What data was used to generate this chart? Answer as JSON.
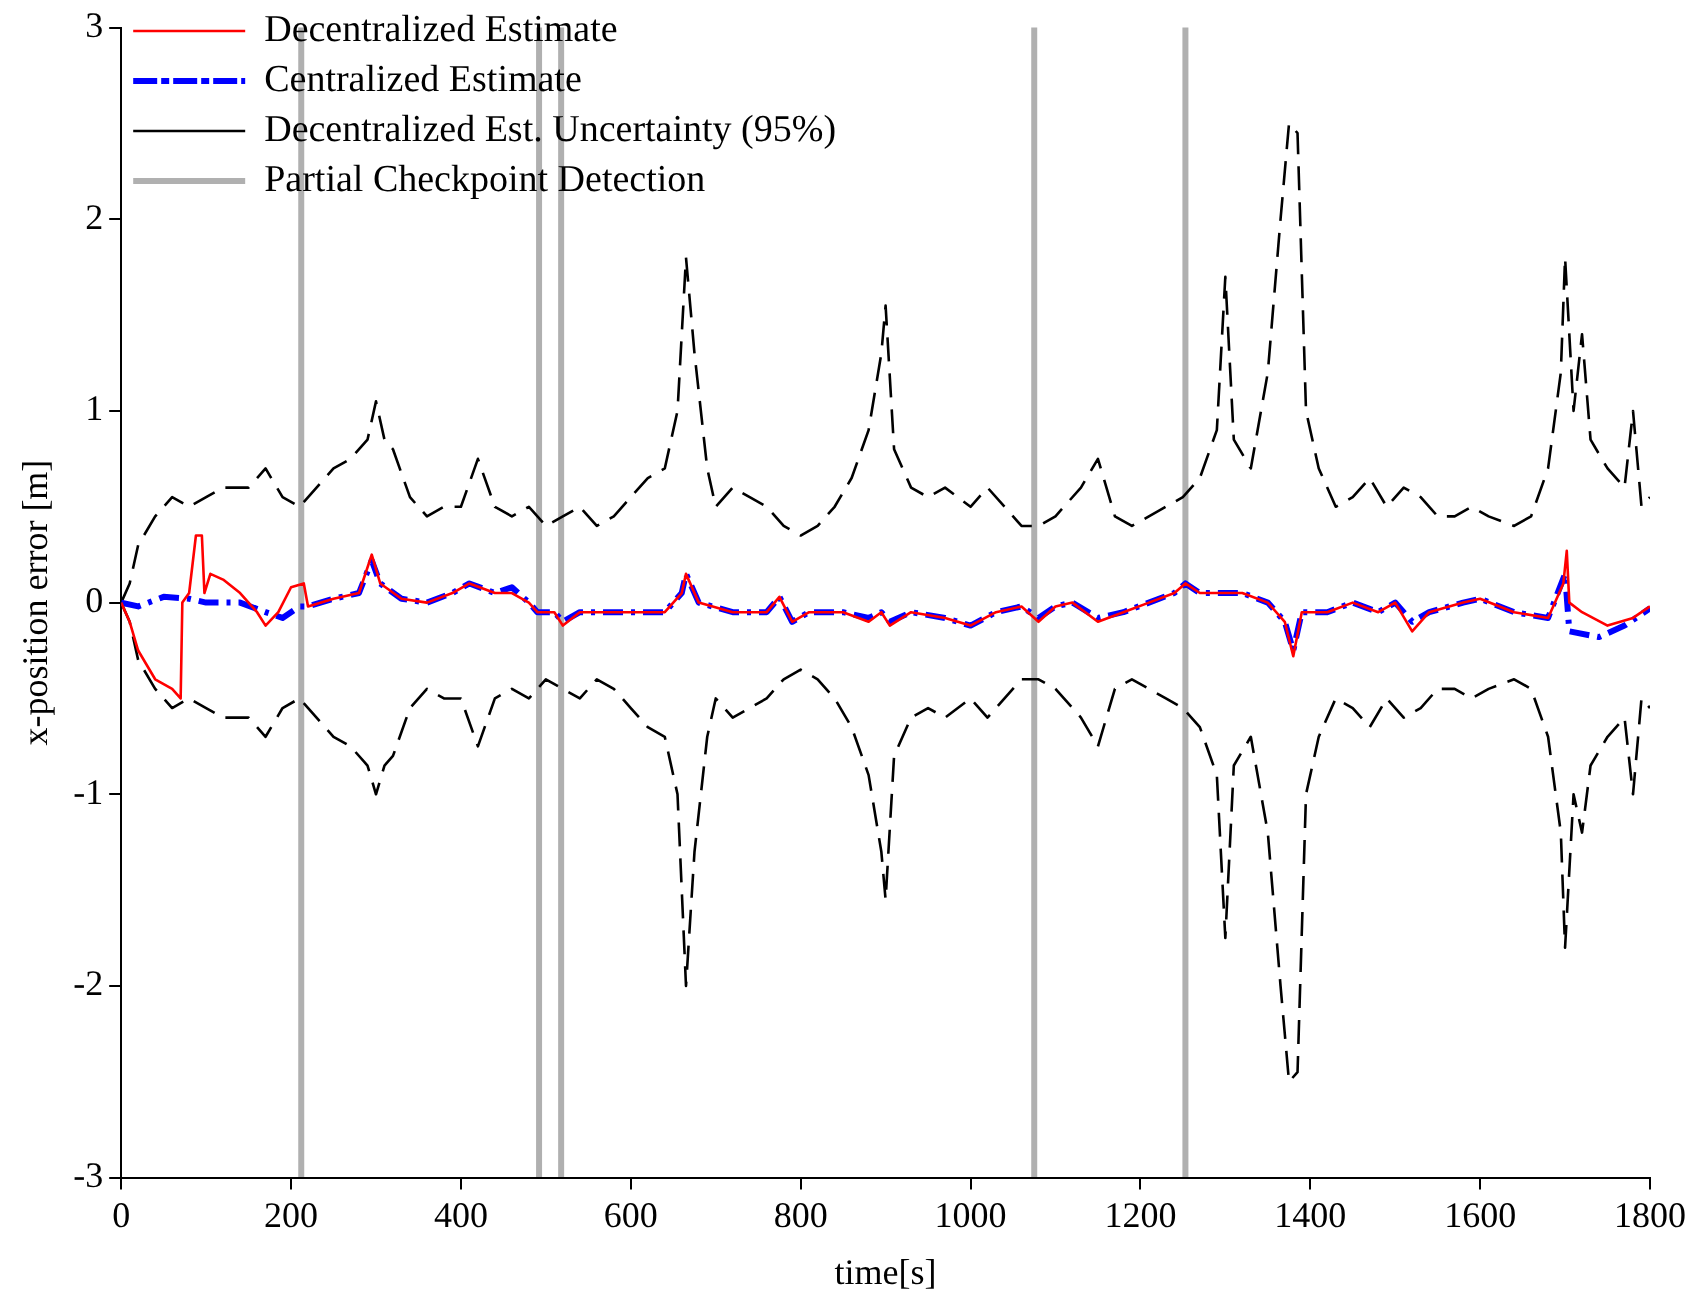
{
  "chart_data": {
    "type": "line",
    "xlabel": "time[s]",
    "ylabel": "x-position error [m]",
    "xlim": [
      0,
      1800
    ],
    "xticks": [
      0,
      200,
      400,
      600,
      800,
      1000,
      1200,
      1400,
      1600,
      1800
    ],
    "ylim": [
      -3,
      3
    ],
    "yticks": [
      -3,
      -2,
      -1,
      0,
      1,
      2,
      3
    ],
    "grid": false,
    "legend": "top left",
    "marker": "none",
    "series": [
      {
        "name": "Decentralized Estimate",
        "color": "#ff0000",
        "line_style": "solid",
        "x": [
          0,
          10,
          20,
          40,
          60,
          70,
          72,
          80,
          88,
          95,
          98,
          105,
          120,
          140,
          160,
          170,
          185,
          200,
          215,
          220,
          250,
          280,
          295,
          305,
          330,
          360,
          390,
          410,
          440,
          460,
          480,
          490,
          510,
          520,
          540,
          600,
          640,
          660,
          665,
          680,
          720,
          760,
          775,
          790,
          810,
          850,
          880,
          895,
          905,
          930,
          970,
          1000,
          1030,
          1060,
          1080,
          1100,
          1120,
          1150,
          1180,
          1210,
          1240,
          1253,
          1270,
          1290,
          1320,
          1350,
          1370,
          1380,
          1390,
          1420,
          1450,
          1480,
          1500,
          1520,
          1540,
          1580,
          1600,
          1640,
          1680,
          1698,
          1702,
          1705,
          1720,
          1750,
          1780,
          1800
        ],
        "values": [
          0,
          -0.1,
          -0.25,
          -0.4,
          -0.45,
          -0.5,
          0,
          0.05,
          0.35,
          0.35,
          0.05,
          0.15,
          0.12,
          0.05,
          -0.05,
          -0.12,
          -0.05,
          0.08,
          0.1,
          -0.02,
          0.02,
          0.05,
          0.25,
          0.1,
          0.02,
          0,
          0.05,
          0.1,
          0.05,
          0.05,
          0,
          -0.05,
          -0.05,
          -0.12,
          -0.05,
          -0.05,
          -0.05,
          0.05,
          0.15,
          0,
          -0.05,
          -0.05,
          0.03,
          -0.1,
          -0.05,
          -0.05,
          -0.1,
          -0.05,
          -0.12,
          -0.05,
          -0.08,
          -0.12,
          -0.05,
          -0.02,
          -0.1,
          -0.02,
          0,
          -0.1,
          -0.05,
          0,
          0.05,
          0.1,
          0.05,
          0.05,
          0.05,
          0,
          -0.1,
          -0.28,
          -0.05,
          -0.05,
          0,
          -0.05,
          0,
          -0.15,
          -0.05,
          0,
          0.02,
          -0.05,
          -0.08,
          0.1,
          0.27,
          0,
          -0.05,
          -0.12,
          -0.08,
          -0.02
        ]
      },
      {
        "name": "Centralized Estimate",
        "color": "#0000ff",
        "line_style": "dashed",
        "x": [
          0,
          20,
          50,
          80,
          100,
          140,
          170,
          190,
          210,
          220,
          250,
          280,
          295,
          305,
          330,
          360,
          390,
          410,
          440,
          460,
          480,
          490,
          510,
          520,
          540,
          600,
          640,
          660,
          665,
          680,
          720,
          760,
          775,
          790,
          810,
          850,
          880,
          895,
          905,
          930,
          970,
          1000,
          1030,
          1060,
          1080,
          1100,
          1120,
          1150,
          1180,
          1210,
          1240,
          1253,
          1270,
          1290,
          1320,
          1350,
          1370,
          1380,
          1390,
          1420,
          1450,
          1480,
          1500,
          1520,
          1540,
          1580,
          1600,
          1640,
          1680,
          1700,
          1705,
          1740,
          1770,
          1800
        ],
        "values": [
          0,
          -0.02,
          0.03,
          0.02,
          0,
          0,
          -0.05,
          -0.08,
          -0.02,
          -0.02,
          0.02,
          0.05,
          0.22,
          0.1,
          0.02,
          0,
          0.05,
          0.1,
          0.05,
          0.08,
          0,
          -0.05,
          -0.05,
          -0.1,
          -0.05,
          -0.05,
          -0.05,
          0.05,
          0.15,
          0,
          -0.05,
          -0.05,
          0.03,
          -0.1,
          -0.05,
          -0.05,
          -0.08,
          -0.05,
          -0.1,
          -0.05,
          -0.08,
          -0.12,
          -0.05,
          -0.02,
          -0.08,
          -0.02,
          0,
          -0.08,
          -0.05,
          0,
          0.05,
          0.1,
          0.05,
          0.05,
          0.05,
          0,
          -0.1,
          -0.25,
          -0.05,
          -0.05,
          0,
          -0.05,
          0,
          -0.1,
          -0.05,
          0,
          0.02,
          -0.05,
          -0.08,
          0.15,
          -0.15,
          -0.18,
          -0.12,
          -0.03
        ]
      },
      {
        "name": "Decentralized Est. Uncertainty (95%)",
        "color": "#000000",
        "line_style": "dashed",
        "x": [
          0,
          10,
          20,
          40,
          60,
          80,
          100,
          120,
          150,
          170,
          190,
          210,
          230,
          250,
          270,
          290,
          300,
          310,
          320,
          340,
          360,
          380,
          400,
          420,
          440,
          460,
          480,
          500,
          520,
          540,
          560,
          580,
          600,
          620,
          640,
          655,
          665,
          675,
          690,
          700,
          720,
          740,
          760,
          780,
          800,
          820,
          840,
          860,
          880,
          895,
          900,
          910,
          930,
          950,
          970,
          1000,
          1020,
          1040,
          1060,
          1080,
          1100,
          1130,
          1150,
          1170,
          1190,
          1210,
          1230,
          1250,
          1270,
          1290,
          1300,
          1310,
          1330,
          1350,
          1365,
          1375,
          1385,
          1395,
          1410,
          1430,
          1450,
          1470,
          1490,
          1510,
          1530,
          1550,
          1570,
          1590,
          1610,
          1640,
          1660,
          1680,
          1695,
          1700,
          1710,
          1720,
          1730,
          1750,
          1770,
          1780,
          1790,
          1800
        ],
        "values": [
          0,
          0.1,
          0.3,
          0.45,
          0.55,
          0.5,
          0.55,
          0.6,
          0.6,
          0.7,
          0.55,
          0.5,
          0.6,
          0.7,
          0.75,
          0.85,
          1.05,
          0.85,
          0.8,
          0.55,
          0.45,
          0.5,
          0.5,
          0.75,
          0.5,
          0.45,
          0.5,
          0.4,
          0.45,
          0.5,
          0.4,
          0.45,
          0.55,
          0.65,
          0.7,
          1,
          1.8,
          1.3,
          0.7,
          0.5,
          0.6,
          0.55,
          0.5,
          0.4,
          0.35,
          0.4,
          0.5,
          0.65,
          0.9,
          1.3,
          1.55,
          0.8,
          0.6,
          0.55,
          0.6,
          0.5,
          0.6,
          0.5,
          0.4,
          0.4,
          0.45,
          0.6,
          0.75,
          0.45,
          0.4,
          0.45,
          0.5,
          0.55,
          0.65,
          0.9,
          1.7,
          0.85,
          0.7,
          1.2,
          2,
          2.5,
          2.45,
          1,
          0.7,
          0.5,
          0.55,
          0.65,
          0.5,
          0.6,
          0.55,
          0.45,
          0.45,
          0.5,
          0.45,
          0.4,
          0.45,
          0.7,
          1.2,
          1.8,
          1,
          1.4,
          0.85,
          0.7,
          0.6,
          1,
          0.5,
          0.55
        ]
      },
      {
        "color": "#000000",
        "line_style": "dashed",
        "x": [
          0,
          10,
          20,
          40,
          60,
          80,
          100,
          120,
          150,
          170,
          190,
          210,
          230,
          250,
          270,
          290,
          300,
          310,
          320,
          340,
          360,
          380,
          400,
          420,
          440,
          460,
          480,
          500,
          520,
          540,
          560,
          580,
          600,
          620,
          640,
          655,
          665,
          675,
          690,
          700,
          720,
          740,
          760,
          780,
          800,
          820,
          840,
          860,
          880,
          895,
          900,
          910,
          930,
          950,
          970,
          1000,
          1020,
          1040,
          1060,
          1080,
          1100,
          1130,
          1150,
          1170,
          1190,
          1210,
          1230,
          1250,
          1270,
          1290,
          1300,
          1310,
          1330,
          1350,
          1365,
          1375,
          1385,
          1395,
          1410,
          1430,
          1450,
          1470,
          1490,
          1510,
          1530,
          1550,
          1570,
          1590,
          1610,
          1640,
          1660,
          1680,
          1695,
          1700,
          1710,
          1720,
          1730,
          1750,
          1770,
          1780,
          1790,
          1800
        ],
        "values": [
          0,
          -0.1,
          -0.3,
          -0.45,
          -0.55,
          -0.5,
          -0.55,
          -0.6,
          -0.6,
          -0.7,
          -0.55,
          -0.5,
          -0.6,
          -0.7,
          -0.75,
          -0.85,
          -1,
          -0.85,
          -0.8,
          -0.55,
          -0.45,
          -0.5,
          -0.5,
          -0.75,
          -0.5,
          -0.45,
          -0.5,
          -0.4,
          -0.45,
          -0.5,
          -0.4,
          -0.45,
          -0.55,
          -0.65,
          -0.7,
          -1,
          -2,
          -1.3,
          -0.7,
          -0.5,
          -0.6,
          -0.55,
          -0.5,
          -0.4,
          -0.35,
          -0.4,
          -0.5,
          -0.65,
          -0.9,
          -1.3,
          -1.55,
          -0.8,
          -0.6,
          -0.55,
          -0.6,
          -0.5,
          -0.6,
          -0.5,
          -0.4,
          -0.4,
          -0.45,
          -0.6,
          -0.75,
          -0.45,
          -0.4,
          -0.45,
          -0.5,
          -0.55,
          -0.65,
          -0.9,
          -1.75,
          -0.85,
          -0.7,
          -1.2,
          -2,
          -2.5,
          -2.45,
          -1,
          -0.7,
          -0.5,
          -0.55,
          -0.65,
          -0.5,
          -0.6,
          -0.55,
          -0.45,
          -0.45,
          -0.5,
          -0.45,
          -0.4,
          -0.45,
          -0.7,
          -1.2,
          -1.8,
          -1,
          -1.2,
          -0.85,
          -0.7,
          -0.6,
          -1,
          -0.5,
          -0.55
        ]
      }
    ],
    "ref_lines": [
      {
        "axis": "x",
        "value": 212,
        "label": "Partial Checkpoint Detection",
        "color": "#b0b0b0"
      },
      {
        "axis": "x",
        "value": 492,
        "color": "#b0b0b0"
      },
      {
        "axis": "x",
        "value": 518,
        "color": "#b0b0b0"
      },
      {
        "axis": "x",
        "value": 1075,
        "color": "#b0b0b0"
      },
      {
        "axis": "x",
        "value": 1253,
        "color": "#b0b0b0"
      }
    ]
  }
}
